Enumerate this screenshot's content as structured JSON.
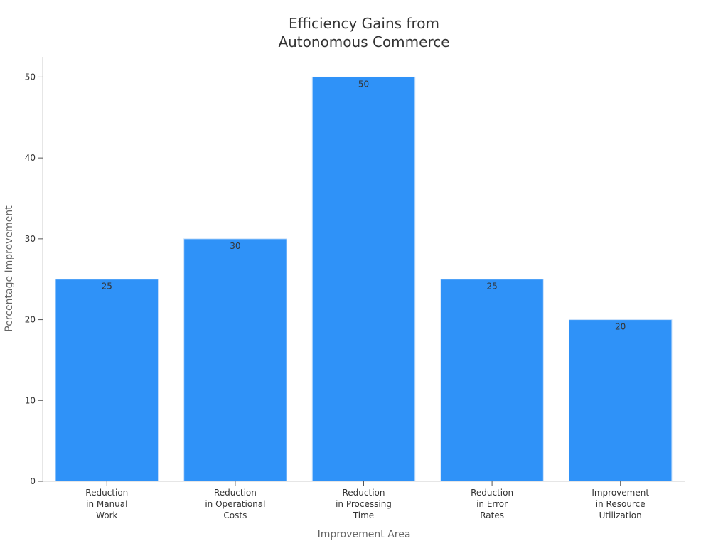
{
  "chart_data": {
    "type": "bar",
    "title": [
      "Efficiency Gains from",
      "Autonomous Commerce"
    ],
    "xlabel": "Improvement Area",
    "ylabel": "Percentage Improvement",
    "categories": [
      [
        "Reduction",
        "in Manual",
        "Work"
      ],
      [
        "Reduction",
        "in Operational",
        "Costs"
      ],
      [
        "Reduction",
        "in Processing",
        "Time"
      ],
      [
        "Reduction",
        "in Error",
        "Rates"
      ],
      [
        "Improvement",
        "in Resource",
        "Utilization"
      ]
    ],
    "values": [
      25,
      30,
      50,
      25,
      20
    ],
    "ylim": [
      0,
      52.5
    ],
    "yticks": [
      0,
      10,
      20,
      30,
      40,
      50
    ],
    "grid": false,
    "bar_color": "#2f92f8",
    "bar_edge_color": "#c8e0fb"
  }
}
